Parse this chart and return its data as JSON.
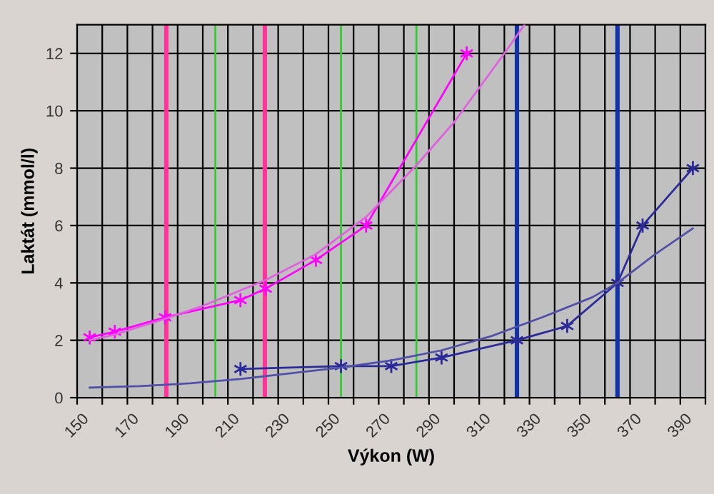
{
  "chart_data": {
    "type": "line",
    "xlabel": "Výkon (W)",
    "ylabel": "Laktát (mmol/l)",
    "xlim": [
      150,
      400
    ],
    "ylim": [
      0,
      13
    ],
    "xticks": [
      150,
      {
        "value": 160,
        "label": null
      },
      170,
      {
        "value": 180,
        "label": null
      },
      190,
      {
        "value": 200,
        "label": null
      },
      210,
      {
        "value": 220,
        "label": null
      },
      230,
      {
        "value": 240,
        "label": null
      },
      250,
      {
        "value": 260,
        "label": null
      },
      270,
      {
        "value": 280,
        "label": null
      },
      290,
      {
        "value": 300,
        "label": null
      },
      310,
      {
        "value": 320,
        "label": null
      },
      330,
      {
        "value": 340,
        "label": null
      },
      350,
      {
        "value": 360,
        "label": null
      },
      370,
      {
        "value": 380,
        "label": null
      },
      390,
      {
        "value": 400,
        "label": null
      }
    ],
    "yticks": [
      0,
      2,
      4,
      6,
      8,
      10,
      12
    ],
    "grid": true,
    "series": [
      {
        "color": "#ff00ff",
        "marker": "cross",
        "x": [
          155,
          165,
          185,
          215,
          225,
          245,
          265,
          305
        ],
        "values": [
          2.1,
          2.3,
          2.8,
          3.4,
          3.8,
          4.8,
          6.0,
          12.0
        ]
      },
      {
        "type": "line",
        "color": "#e060e0",
        "marker": "none",
        "x": [
          155,
          165,
          185,
          200,
          225,
          245,
          265,
          275,
          285,
          300,
          320,
          328
        ],
        "values": [
          2.0,
          2.2,
          2.75,
          3.2,
          4.1,
          5.0,
          6.3,
          7.2,
          8.1,
          9.6,
          12.0,
          13.0
        ]
      },
      {
        "color": "#2a2a99",
        "marker": "cross",
        "x": [
          215,
          255,
          275,
          295,
          325,
          345,
          365,
          375,
          395
        ],
        "values": [
          1.0,
          1.1,
          1.1,
          1.4,
          2.0,
          2.5,
          4.0,
          6.0,
          8.0
        ]
      },
      {
        "type": "line",
        "color": "#5050a8",
        "marker": "none",
        "x": [
          155,
          175,
          195,
          215,
          235,
          255,
          275,
          295,
          315,
          335,
          355,
          365,
          380,
          395
        ],
        "values": [
          0.35,
          0.4,
          0.5,
          0.65,
          0.85,
          1.05,
          1.3,
          1.65,
          2.15,
          2.8,
          3.5,
          4.0,
          5.0,
          5.9
        ]
      }
    ],
    "ref_lines": [
      {
        "axis": "x",
        "value": 185.5,
        "color": "#ff3399",
        "line_style": "solid"
      },
      {
        "axis": "x",
        "value": 224.7,
        "color": "#ff3399",
        "line_style": "solid"
      },
      {
        "axis": "x",
        "value": 205,
        "color": "#33cc33",
        "line_style": "solid"
      },
      {
        "axis": "x",
        "value": 255,
        "color": "#33cc33",
        "line_style": "solid"
      },
      {
        "axis": "x",
        "value": 285,
        "color": "#33cc33",
        "line_style": "solid"
      },
      {
        "axis": "x",
        "value": 325,
        "color": "#1133aa",
        "line_style": "solid"
      },
      {
        "axis": "x",
        "value": 365,
        "color": "#1133aa",
        "line_style": "solid"
      }
    ]
  }
}
